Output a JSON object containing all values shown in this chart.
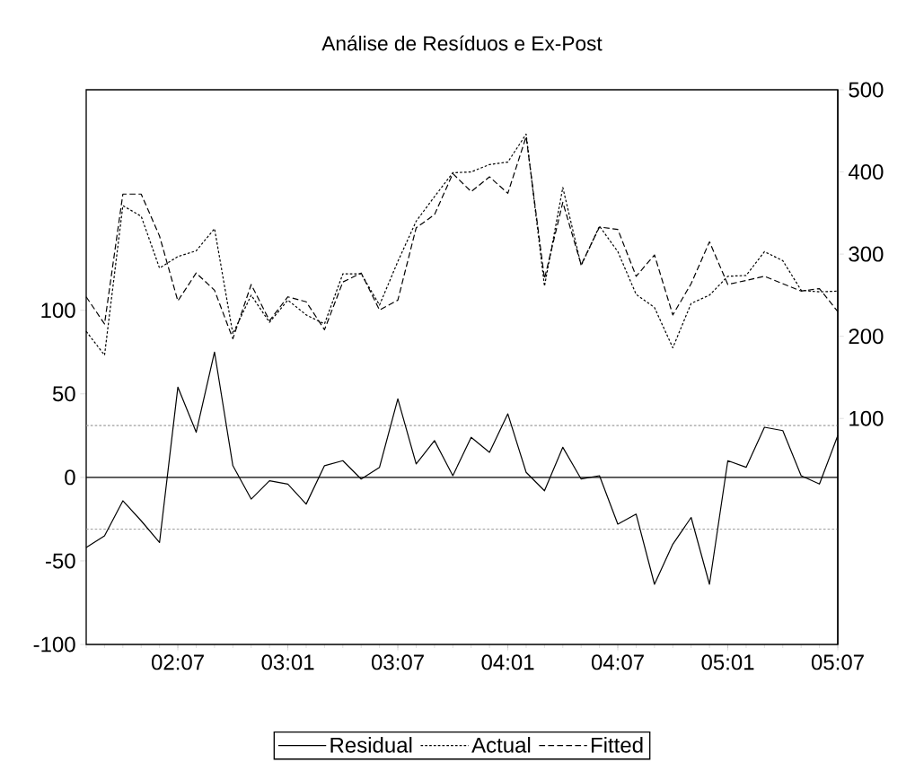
{
  "chart_data": {
    "type": "line",
    "title": "Análise de Resíduos e Ex-Post",
    "categories": [
      null,
      null,
      null,
      null,
      null,
      "02:07",
      null,
      null,
      null,
      null,
      null,
      "03:01",
      null,
      null,
      null,
      null,
      null,
      "03:07",
      null,
      null,
      null,
      null,
      null,
      "04:01",
      null,
      null,
      null,
      null,
      null,
      "04:07",
      null,
      null,
      null,
      null,
      null,
      "05:01",
      null,
      null,
      null,
      null,
      null,
      "05:07"
    ],
    "series": [
      {
        "name": "Residual",
        "color": "#000000",
        "axis": "y",
        "line_style": "solid",
        "values": [
          -42,
          -35,
          -14,
          -26,
          -39,
          54,
          27,
          75,
          7,
          -13,
          -2,
          -4,
          -16,
          7,
          10,
          -1,
          6,
          47,
          8,
          22,
          1,
          24,
          15,
          38,
          3,
          -8,
          18,
          -1,
          1,
          -28,
          -22,
          -64,
          -40,
          -24,
          -64,
          10,
          6,
          30,
          28,
          1,
          -4,
          25
        ]
      },
      {
        "name": "Actual",
        "color": "#000000",
        "axis": "y2",
        "line_style": "dotted",
        "values": [
          206,
          177,
          359,
          346,
          283,
          297,
          304,
          331,
          203,
          250,
          217,
          244,
          226,
          215,
          276,
          276,
          238,
          291,
          340,
          370,
          399,
          400,
          409,
          412,
          446,
          261,
          381,
          286,
          334,
          303,
          251,
          235,
          186,
          240,
          250,
          273,
          274,
          303,
          292,
          256,
          254,
          255
        ]
      },
      {
        "name": "Fitted",
        "color": "#000000",
        "axis": "y2",
        "line_style": "dashed",
        "values": [
          248,
          215,
          373,
          373,
          322,
          243,
          277,
          256,
          197,
          263,
          219,
          248,
          242,
          208,
          266,
          277,
          232,
          244,
          332,
          348,
          398,
          376,
          394,
          374,
          443,
          270,
          363,
          287,
          333,
          330,
          273,
          299,
          226,
          264,
          315,
          263,
          268,
          273,
          264,
          255,
          258,
          230
        ]
      }
    ],
    "ylim": [
      -100,
      232
    ],
    "yticks": [
      -100,
      -50,
      0,
      50,
      100
    ],
    "y2lim": [
      -175,
      500
    ],
    "y2ticks": [
      100,
      200,
      300,
      400,
      500
    ],
    "ref_lines": [
      {
        "axis": "y",
        "value": 31,
        "color": "#a0a0a0",
        "line_style": "dotted"
      },
      {
        "axis": "y",
        "value": -31,
        "color": "#a0a0a0",
        "line_style": "dotted"
      },
      {
        "axis": "y",
        "value": 0,
        "color": "#000000",
        "line_style": "solid"
      }
    ],
    "grid": false,
    "marker": "none",
    "legend": "bottom"
  }
}
